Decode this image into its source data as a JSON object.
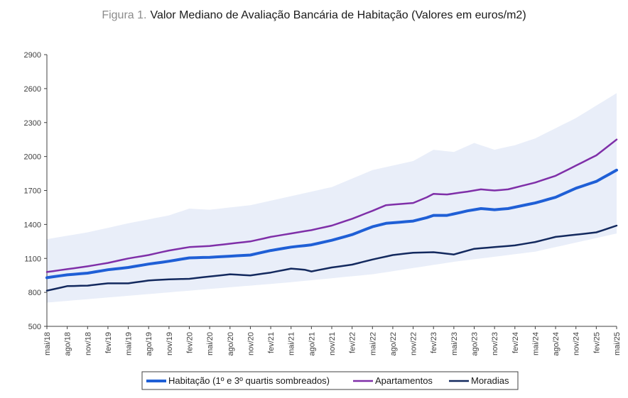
{
  "chart_data": {
    "type": "line",
    "title_prefix": "Figura 1.",
    "title": "Valor Mediano de Avaliação Bancária de Habitação (Valores em euros/m2)",
    "ylim": [
      500,
      2900
    ],
    "yticks": [
      500,
      800,
      1100,
      1400,
      1700,
      2000,
      2300,
      2600,
      2900
    ],
    "xlabels": [
      "mai/18",
      "ago/18",
      "nov/18",
      "fev/19",
      "mai/19",
      "ago/19",
      "nov/19",
      "fev/20",
      "mai/20",
      "ago/20",
      "nov/20",
      "fev/21",
      "mai/21",
      "ago/21",
      "nov/21",
      "fev/22",
      "mai/22",
      "ago/22",
      "nov/22",
      "fev/23",
      "mai/23",
      "ago/23",
      "nov/23",
      "fev/24",
      "mai/24",
      "ago/24",
      "nov/24",
      "fev/25",
      "mai/25"
    ],
    "x": [
      "mai/18",
      "jun/18",
      "jul/18",
      "ago/18",
      "set/18",
      "out/18",
      "nov/18",
      "dez/18",
      "jan/19",
      "fev/19",
      "mar/19",
      "abr/19",
      "mai/19",
      "jun/19",
      "jul/19",
      "ago/19",
      "set/19",
      "out/19",
      "nov/19",
      "dez/19",
      "jan/20",
      "fev/20",
      "mar/20",
      "abr/20",
      "mai/20",
      "jun/20",
      "jul/20",
      "ago/20",
      "set/20",
      "out/20",
      "nov/20",
      "dez/20",
      "jan/21",
      "fev/21",
      "mar/21",
      "abr/21",
      "mai/21",
      "jun/21",
      "jul/21",
      "ago/21",
      "set/21",
      "out/21",
      "nov/21",
      "dez/21",
      "jan/22",
      "fev/22",
      "mar/22",
      "abr/22",
      "mai/22",
      "jun/22",
      "jul/22",
      "ago/22",
      "set/22",
      "out/22",
      "nov/22",
      "dez/22",
      "jan/23",
      "fev/23",
      "mar/23",
      "abr/23",
      "mai/23",
      "jun/23",
      "jul/23",
      "ago/23",
      "set/23",
      "out/23",
      "nov/23",
      "dez/23",
      "jan/24",
      "fev/24",
      "mar/24",
      "abr/24",
      "mai/24",
      "jun/24",
      "jul/24",
      "ago/24",
      "set/24",
      "out/24",
      "nov/24",
      "dez/24",
      "jan/25",
      "fev/25",
      "mar/25",
      "abr/25",
      "mai/25"
    ],
    "band_label": "1º e 3º quartis",
    "band": {
      "lower_anchors": [
        [
          0,
          710
        ],
        [
          12,
          770
        ],
        [
          24,
          830
        ],
        [
          36,
          890
        ],
        [
          48,
          960
        ],
        [
          60,
          1070
        ],
        [
          72,
          1160
        ],
        [
          84,
          1320
        ]
      ],
      "upper_anchors": [
        [
          0,
          1270
        ],
        [
          6,
          1330
        ],
        [
          12,
          1410
        ],
        [
          18,
          1480
        ],
        [
          21,
          1540
        ],
        [
          24,
          1530
        ],
        [
          30,
          1570
        ],
        [
          36,
          1650
        ],
        [
          42,
          1730
        ],
        [
          48,
          1880
        ],
        [
          51,
          1920
        ],
        [
          54,
          1960
        ],
        [
          57,
          2060
        ],
        [
          60,
          2040
        ],
        [
          63,
          2120
        ],
        [
          66,
          2060
        ],
        [
          69,
          2100
        ],
        [
          72,
          2160
        ],
        [
          78,
          2340
        ],
        [
          84,
          2560
        ]
      ]
    },
    "series": [
      {
        "name": "Habitação (1º e 3º quartis sombreados)",
        "color": "#1f5fd6",
        "width": 4,
        "anchors": [
          [
            0,
            930
          ],
          [
            3,
            955
          ],
          [
            6,
            970
          ],
          [
            9,
            1000
          ],
          [
            12,
            1020
          ],
          [
            15,
            1050
          ],
          [
            18,
            1075
          ],
          [
            21,
            1105
          ],
          [
            24,
            1110
          ],
          [
            27,
            1120
          ],
          [
            30,
            1130
          ],
          [
            33,
            1170
          ],
          [
            36,
            1200
          ],
          [
            39,
            1220
          ],
          [
            42,
            1260
          ],
          [
            45,
            1310
          ],
          [
            48,
            1380
          ],
          [
            50,
            1410
          ],
          [
            52,
            1420
          ],
          [
            54,
            1430
          ],
          [
            56,
            1460
          ],
          [
            57,
            1480
          ],
          [
            59,
            1480
          ],
          [
            62,
            1520
          ],
          [
            64,
            1540
          ],
          [
            66,
            1530
          ],
          [
            68,
            1540
          ],
          [
            72,
            1590
          ],
          [
            75,
            1640
          ],
          [
            78,
            1720
          ],
          [
            81,
            1780
          ],
          [
            84,
            1880
          ]
        ]
      },
      {
        "name": "Apartamentos",
        "color": "#7f2fa8",
        "width": 2.5,
        "anchors": [
          [
            0,
            980
          ],
          [
            3,
            1005
          ],
          [
            6,
            1030
          ],
          [
            9,
            1060
          ],
          [
            12,
            1100
          ],
          [
            15,
            1130
          ],
          [
            18,
            1170
          ],
          [
            21,
            1200
          ],
          [
            24,
            1210
          ],
          [
            27,
            1230
          ],
          [
            30,
            1250
          ],
          [
            33,
            1290
          ],
          [
            36,
            1320
          ],
          [
            39,
            1350
          ],
          [
            42,
            1390
          ],
          [
            45,
            1450
          ],
          [
            48,
            1520
          ],
          [
            50,
            1570
          ],
          [
            52,
            1580
          ],
          [
            54,
            1590
          ],
          [
            56,
            1640
          ],
          [
            57,
            1670
          ],
          [
            59,
            1665
          ],
          [
            62,
            1690
          ],
          [
            64,
            1710
          ],
          [
            66,
            1700
          ],
          [
            68,
            1710
          ],
          [
            72,
            1770
          ],
          [
            75,
            1830
          ],
          [
            78,
            1920
          ],
          [
            81,
            2010
          ],
          [
            84,
            2150
          ]
        ]
      },
      {
        "name": "Moradias",
        "color": "#13295e",
        "width": 2.5,
        "anchors": [
          [
            0,
            815
          ],
          [
            3,
            855
          ],
          [
            6,
            860
          ],
          [
            9,
            880
          ],
          [
            12,
            880
          ],
          [
            15,
            905
          ],
          [
            18,
            915
          ],
          [
            21,
            920
          ],
          [
            24,
            940
          ],
          [
            27,
            960
          ],
          [
            30,
            950
          ],
          [
            33,
            975
          ],
          [
            36,
            1010
          ],
          [
            38,
            1000
          ],
          [
            39,
            985
          ],
          [
            42,
            1020
          ],
          [
            45,
            1045
          ],
          [
            48,
            1090
          ],
          [
            51,
            1130
          ],
          [
            54,
            1150
          ],
          [
            57,
            1155
          ],
          [
            60,
            1135
          ],
          [
            63,
            1185
          ],
          [
            66,
            1200
          ],
          [
            69,
            1215
          ],
          [
            72,
            1245
          ],
          [
            75,
            1290
          ],
          [
            78,
            1310
          ],
          [
            81,
            1330
          ],
          [
            84,
            1390
          ]
        ]
      }
    ]
  }
}
